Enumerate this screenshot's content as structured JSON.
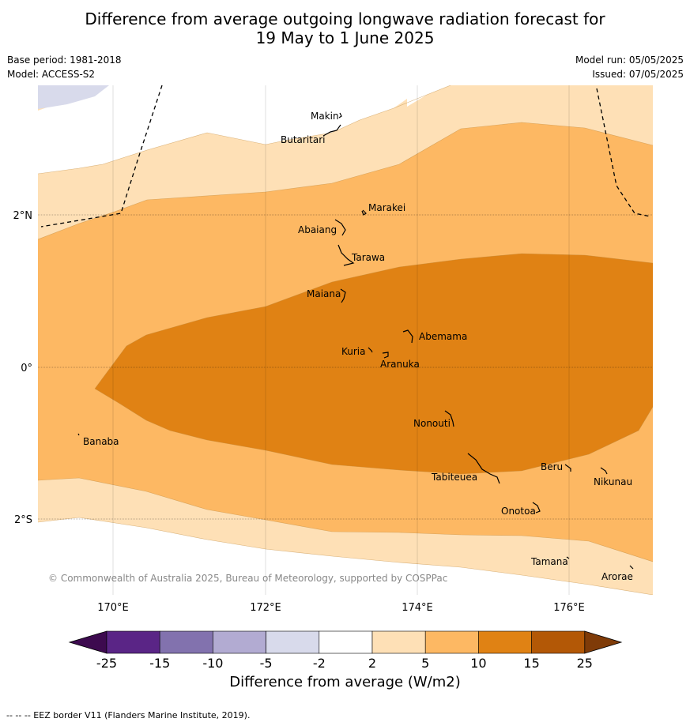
{
  "title_line1": "Difference from average outgoing longwave radiation forecast for",
  "title_line2": "19 May to 1 June 2025",
  "base_period": "Base period: 1981-2018",
  "model": "Model: ACCESS-S2",
  "model_run": "Model run: 05/05/2025",
  "issued": "Issued: 07/05/2025",
  "copyright": "© Commonwealth of Australia 2025, Bureau of Meteorology, supported by COSPPac",
  "footer": "-- -- -- EEZ border V11 (Flanders Marine Institute, 2019).",
  "map": {
    "lon_labels": [
      "170°E",
      "172°E",
      "174°E",
      "176°E"
    ],
    "lat_labels": [
      "2°N",
      "0°",
      "2°S"
    ],
    "islands": [
      "Makin",
      "Butaritari",
      "Marakei",
      "Abaiang",
      "Tarawa",
      "Maiana",
      "Abemama",
      "Kuria",
      "Aranuka",
      "Nonouti",
      "Banaba",
      "Beru",
      "Tabiteuea",
      "Nikunau",
      "Onotoa",
      "Tamana",
      "Arorae"
    ]
  },
  "colorbar": {
    "title": "Difference from average (W/m2)",
    "ticks": [
      "-25",
      "-15",
      "-10",
      "-5",
      "-2",
      "2",
      "5",
      "10",
      "15",
      "25"
    ],
    "colors": [
      "#3d0a4f",
      "#5a2586",
      "#8272ae",
      "#b2abd2",
      "#d8daeb",
      "#ffffff",
      "#fee0b6",
      "#fdb863",
      "#e08214",
      "#b35806",
      "#7f3b08"
    ]
  }
}
